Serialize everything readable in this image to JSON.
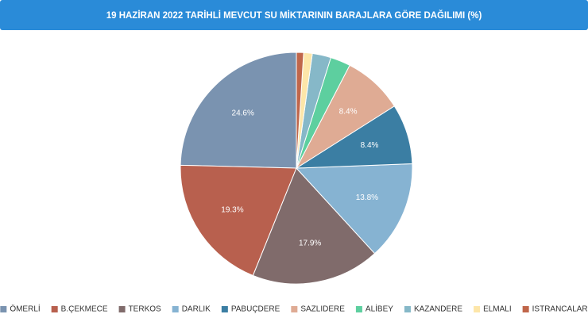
{
  "chart_data": {
    "type": "pie",
    "title": "19 HAZİRAN 2022 TARİHLİ MEVCUT SU MİKTARININ BARAJLARA GÖRE DAĞILIMI (%)",
    "categories": [
      "ÖMERLİ",
      "B.ÇEKMECE",
      "TERKOS",
      "DARLIK",
      "PABUÇDERE",
      "SAZLIDERE",
      "ALİBEY",
      "KAZANDERE",
      "ELMALI",
      "ISTRANCALAR"
    ],
    "values": [
      24.6,
      19.3,
      17.9,
      13.8,
      8.4,
      8.4,
      2.8,
      2.6,
      1.2,
      1.0
    ],
    "value_labels": [
      "24.6%",
      "19.3%",
      "17.9%",
      "13.8%",
      "8.4%",
      "8.4%",
      null,
      null,
      null,
      null
    ],
    "colors": [
      "#7a93b0",
      "#b8604e",
      "#806b6b",
      "#86b3d2",
      "#3b7ea3",
      "#dfab94",
      "#5dcf9f",
      "#86b8c8",
      "#fde6a9",
      "#c0664a"
    ],
    "legend": "bottom"
  }
}
